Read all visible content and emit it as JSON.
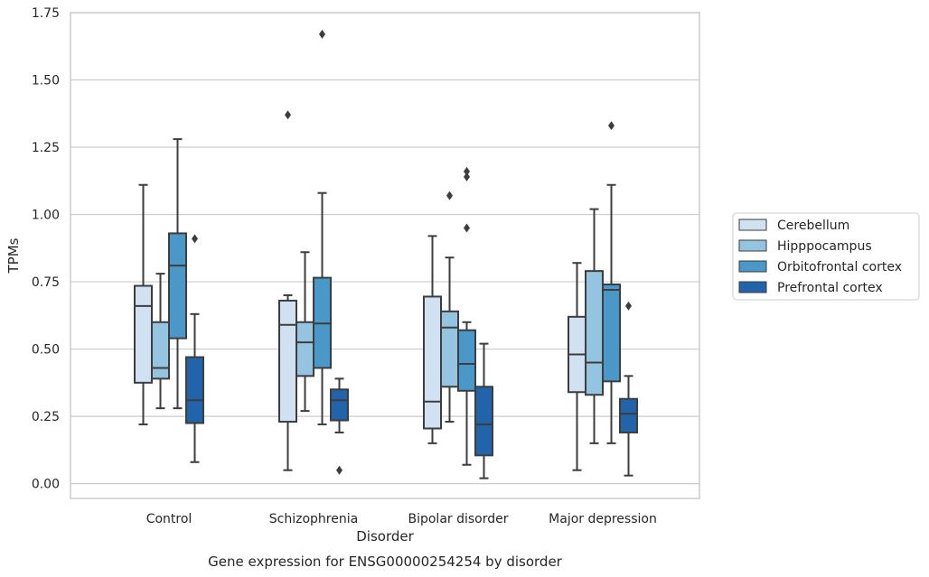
{
  "chart_data": {
    "type": "box",
    "title": "",
    "caption": "Gene expression for ENSG00000254254 by disorder",
    "xlabel": "Disorder",
    "ylabel": "TPMs",
    "ylim": [
      -0.055,
      1.75
    ],
    "yticks": [
      "0.00",
      "0.25",
      "0.50",
      "0.75",
      "1.00",
      "1.25",
      "1.50",
      "1.75"
    ],
    "ytick_values": [
      0,
      0.25,
      0.5,
      0.75,
      1.0,
      1.25,
      1.5,
      1.75
    ],
    "grid": "horizontal",
    "legend_position": "right",
    "categories": [
      "Control",
      "Schizophrenia",
      "Bipolar disorder",
      "Major depression"
    ],
    "series": [
      {
        "name": "Cerebellum",
        "color": "#d0e1f2",
        "boxes": [
          {
            "whislo": 0.22,
            "q1": 0.375,
            "med": 0.66,
            "q3": 0.735,
            "whishi": 1.11,
            "fliers": []
          },
          {
            "whislo": 0.05,
            "q1": 0.23,
            "med": 0.59,
            "q3": 0.68,
            "whishi": 0.7,
            "fliers": [
              1.37
            ]
          },
          {
            "whislo": 0.15,
            "q1": 0.205,
            "med": 0.305,
            "q3": 0.695,
            "whishi": 0.92,
            "fliers": []
          },
          {
            "whislo": 0.05,
            "q1": 0.34,
            "med": 0.48,
            "q3": 0.62,
            "whishi": 0.82,
            "fliers": []
          }
        ]
      },
      {
        "name": "Hipppocampus",
        "color": "#94c4df",
        "boxes": [
          {
            "whislo": 0.28,
            "q1": 0.39,
            "med": 0.43,
            "q3": 0.6,
            "whishi": 0.78,
            "fliers": []
          },
          {
            "whislo": 0.27,
            "q1": 0.4,
            "med": 0.525,
            "q3": 0.6,
            "whishi": 0.86,
            "fliers": []
          },
          {
            "whislo": 0.23,
            "q1": 0.36,
            "med": 0.58,
            "q3": 0.64,
            "whishi": 0.84,
            "fliers": [
              1.07
            ]
          },
          {
            "whislo": 0.15,
            "q1": 0.33,
            "med": 0.45,
            "q3": 0.79,
            "whishi": 1.02,
            "fliers": []
          }
        ]
      },
      {
        "name": "Orbitofrontal cortex",
        "color": "#4a98c9",
        "boxes": [
          {
            "whislo": 0.28,
            "q1": 0.54,
            "med": 0.81,
            "q3": 0.93,
            "whishi": 1.28,
            "fliers": []
          },
          {
            "whislo": 0.22,
            "q1": 0.43,
            "med": 0.595,
            "q3": 0.765,
            "whishi": 1.08,
            "fliers": [
              1.67
            ]
          },
          {
            "whislo": 0.07,
            "q1": 0.345,
            "med": 0.445,
            "q3": 0.57,
            "whishi": 0.6,
            "fliers": [
              0.95,
              1.14,
              1.16
            ]
          },
          {
            "whislo": 0.15,
            "q1": 0.38,
            "med": 0.72,
            "q3": 0.74,
            "whishi": 1.11,
            "fliers": [
              1.33
            ]
          }
        ]
      },
      {
        "name": "Prefrontal cortex",
        "color": "#2164ab",
        "boxes": [
          {
            "whislo": 0.08,
            "q1": 0.225,
            "med": 0.31,
            "q3": 0.47,
            "whishi": 0.63,
            "fliers": [
              0.91
            ]
          },
          {
            "whislo": 0.19,
            "q1": 0.235,
            "med": 0.31,
            "q3": 0.35,
            "whishi": 0.39,
            "fliers": [
              0.05
            ]
          },
          {
            "whislo": 0.02,
            "q1": 0.105,
            "med": 0.22,
            "q3": 0.36,
            "whishi": 0.52,
            "fliers": []
          },
          {
            "whislo": 0.03,
            "q1": 0.19,
            "med": 0.26,
            "q3": 0.315,
            "whishi": 0.4,
            "fliers": [
              0.66
            ]
          }
        ]
      }
    ]
  }
}
